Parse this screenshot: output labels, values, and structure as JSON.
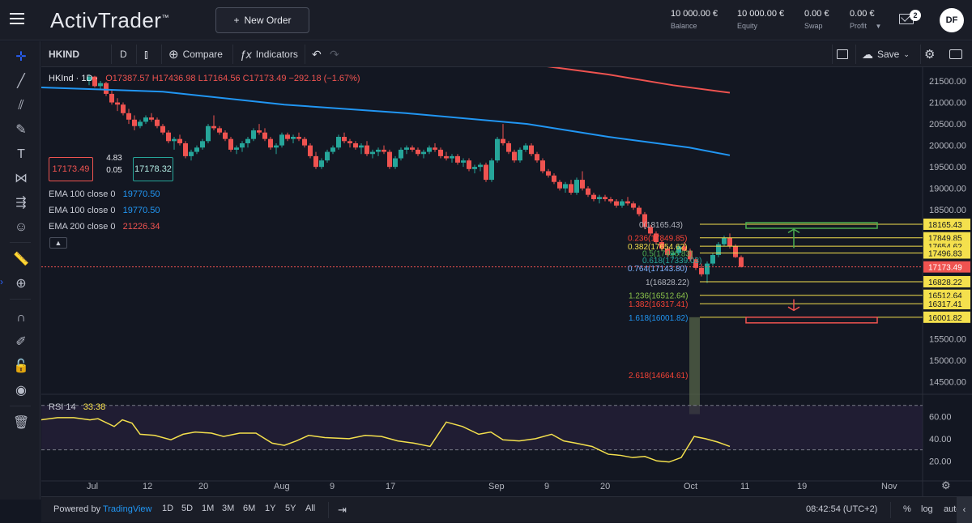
{
  "header": {
    "logo": "ActivTrader",
    "logo_tm": "™",
    "new_order_label": "New Order",
    "account": [
      {
        "value": "10 000.00 €",
        "label": "Balance"
      },
      {
        "value": "10 000.00 €",
        "label": "Equity"
      },
      {
        "value": "0.00 €",
        "label": "Swap"
      },
      {
        "value": "0.00 €",
        "label": "Profit"
      }
    ],
    "mail_count": "2",
    "avatar_initials": "DF"
  },
  "toolbar": {
    "symbol": "HKIND",
    "interval": "D",
    "compare_label": "Compare",
    "indicators_label": "Indicators",
    "save_label": "Save"
  },
  "legend": {
    "symbol_line": "HKInd · 1D ·",
    "ohlc": "O17387.57  H17436.98  L17164.56  C17173.49  −292.18 (−1.67%)",
    "sell_price": "17173.49",
    "spread": "4.83",
    "buy_price": "17178.32",
    "spread2": "0.05",
    "ema": [
      {
        "label": "EMA 100 close 0",
        "value": "19770.50",
        "color": "#2196f3"
      },
      {
        "label": "EMA 100 close 0",
        "value": "19770.50",
        "color": "#2196f3"
      },
      {
        "label": "EMA 200 close 0",
        "value": "21226.34",
        "color": "#f44336"
      }
    ]
  },
  "rsi": {
    "label": "RSI 14",
    "value": "33.38"
  },
  "fib_labels": [
    {
      "text": "0(18165.43)",
      "color": "#b2b5be"
    },
    {
      "text": "0.236(17849.85)",
      "color": "#f44336"
    },
    {
      "text": "0.382(17654.62)",
      "color": "#f4e04d"
    },
    {
      "text": "0.5(17496.83)",
      "color": "#4caf50"
    },
    {
      "text": "0.618(17339.03)",
      "color": "#26a69a"
    },
    {
      "text": "0.764(17143.80)",
      "color": "#7fb3ff"
    },
    {
      "text": "1(16828.22)",
      "color": "#b2b5be"
    },
    {
      "text": "1.236(16512.64)",
      "color": "#8bc34a"
    },
    {
      "text": "1.382(16317.41)",
      "color": "#f44336"
    },
    {
      "text": "1.618(16001.82)",
      "color": "#2196f3"
    },
    {
      "text": "2.618(14664.61)",
      "color": "#f44336"
    }
  ],
  "price_axis": [
    "21500.00",
    "21000.00",
    "20500.00",
    "20000.00",
    "19500.00",
    "19000.00",
    "18500.00",
    "15500.00",
    "15000.00",
    "14500.00"
  ],
  "price_tags": [
    {
      "text": "18165.43",
      "bg": "#f4e04d",
      "fg": "#131722"
    },
    {
      "text": "17849.85",
      "bg": "#f4e04d",
      "fg": "#131722"
    },
    {
      "text": "17654.62",
      "bg": "#f4e04d",
      "fg": "#131722"
    },
    {
      "text": "17496.83",
      "bg": "#f4e04d",
      "fg": "#131722"
    },
    {
      "text": "17173.49",
      "bg": "#ef5350",
      "fg": "#ffffff"
    },
    {
      "text": "16828.22",
      "bg": "#f4e04d",
      "fg": "#131722"
    },
    {
      "text": "16512.64",
      "bg": "#f4e04d",
      "fg": "#131722"
    },
    {
      "text": "16317.41",
      "bg": "#f4e04d",
      "fg": "#131722"
    },
    {
      "text": "16001.82",
      "bg": "#f4e04d",
      "fg": "#131722"
    }
  ],
  "rsi_axis": [
    "60.00",
    "40.00",
    "20.00"
  ],
  "time_axis": [
    "Jul",
    "12",
    "20",
    "Aug",
    "9",
    "17",
    "Sep",
    "9",
    "20",
    "Oct",
    "11",
    "19",
    "Nov"
  ],
  "bottom": {
    "powered": "Powered by",
    "tradingview": "TradingView",
    "timeframes": [
      "1D",
      "5D",
      "1M",
      "3M",
      "6M",
      "1Y",
      "5Y",
      "All"
    ],
    "clock": "08:42:54 (UTC+2)",
    "pct": "%",
    "log": "log",
    "auto": "auto"
  }
}
